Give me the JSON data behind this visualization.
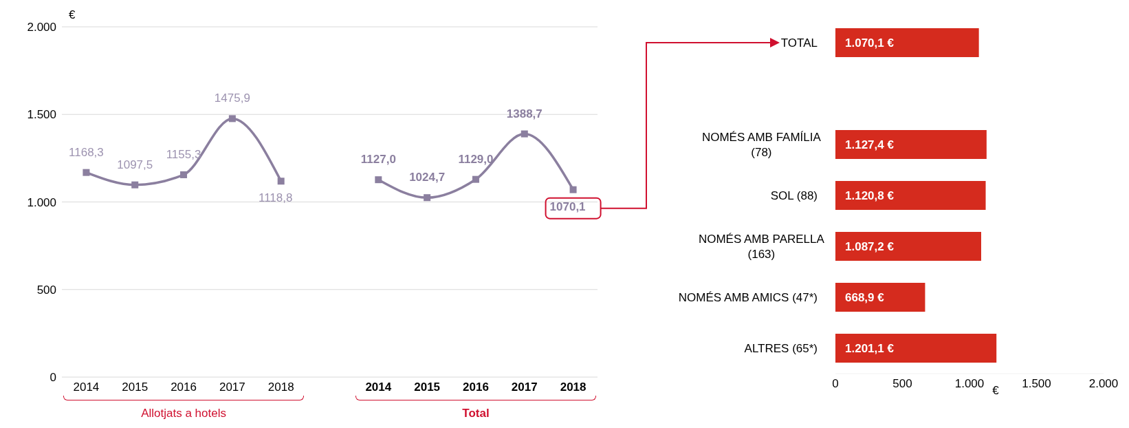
{
  "chart_data": [
    {
      "type": "line",
      "ylabel": "€",
      "categories": [
        "2014",
        "2015",
        "2016",
        "2017",
        "2018",
        null,
        "2014",
        "2015",
        "2016",
        "2017",
        "2018"
      ],
      "series": [
        {
          "color": "#8b7f9f",
          "values": [
            1168.3,
            1097.5,
            1155.3,
            1475.9,
            1118.8,
            null,
            null,
            null,
            null,
            null,
            null
          ],
          "value_labels": [
            "1168,3",
            "1097,5",
            "1155,3",
            "1475,9",
            "1118,8",
            null,
            null,
            null,
            null,
            null,
            null
          ]
        },
        {
          "color": "#8b7f9f",
          "values": [
            null,
            null,
            null,
            null,
            null,
            null,
            1127.0,
            1024.7,
            1129.0,
            1388.7,
            1070.1
          ],
          "value_labels": [
            null,
            null,
            null,
            null,
            null,
            null,
            "1127,0",
            "1024,7",
            "1129,0",
            "1388,7",
            "1070,1"
          ]
        }
      ],
      "ylim": [
        0,
        2000
      ],
      "yticks": [
        0,
        500,
        {
          "value": 1000,
          "label": "1.000"
        },
        {
          "value": 1500,
          "label": "1.500"
        },
        {
          "value": 2000,
          "label": "2.000"
        }
      ],
      "grid": "y",
      "marker": "square",
      "line_style": "solid",
      "annotations": [
        "Allotjats a hotels",
        "Total"
      ]
    },
    {
      "type": "bar",
      "orientation": "horizontal",
      "categories": [
        "TOTAL",
        null,
        "NOMÉS AMB FAMÍLIA\n(78)",
        "SOL (88)",
        "NOMÉS AMB PARELLA\n(163)",
        "NOMÉS AMB AMICS (47*)",
        "ALTRES (65*)"
      ],
      "values": [
        1070.1,
        null,
        1127.4,
        1120.8,
        1087.2,
        668.9,
        1201.1
      ],
      "value_labels": [
        "1.070,1 €",
        null,
        "1.127,4 €",
        "1.120,8 €",
        "1.087,2 €",
        "668,9 €",
        "1.201,1 €"
      ],
      "color": "#d52b1e",
      "xlabel": "€",
      "xlim": [
        0,
        2000
      ],
      "xticks": [
        0,
        500,
        {
          "value": 1000,
          "label": "1.000"
        },
        {
          "value": 1500,
          "label": "1.500"
        },
        {
          "value": 2000,
          "label": "2.000"
        }
      ],
      "grid": false
    }
  ]
}
